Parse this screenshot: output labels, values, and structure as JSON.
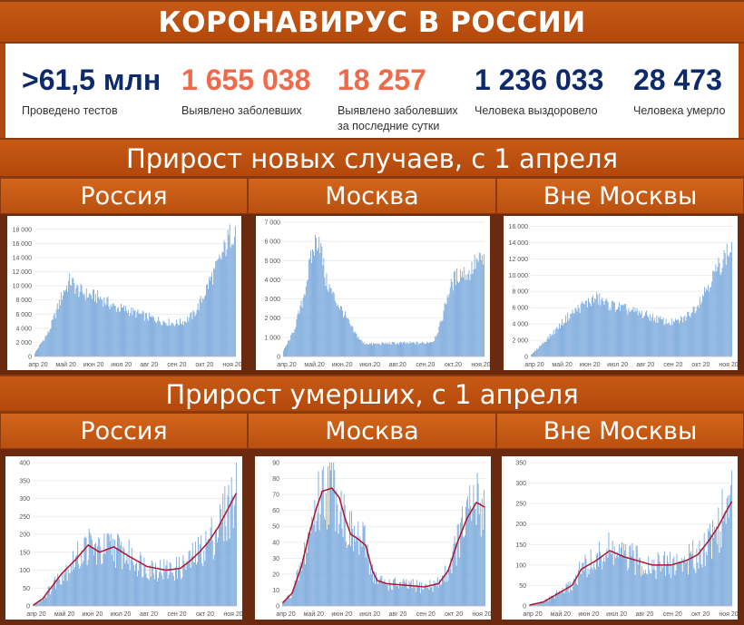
{
  "title": "КОРОНАВИРУС В РОССИИ",
  "stats": [
    {
      "value": ">61,5 млн",
      "label": "Проведено тестов",
      "label2": "",
      "color": "#0d2a6b"
    },
    {
      "value": "1 655 038",
      "label": "Выявлено заболевших",
      "label2": "",
      "color": "#ee6a4a"
    },
    {
      "value": "18 257",
      "label": "Выявлено заболевших",
      "label2": "за последние сутки",
      "color": "#ee6a4a"
    },
    {
      "value": "1 236 033",
      "label": "Человека выздоровело",
      "label2": "",
      "color": "#0d2a6b"
    },
    {
      "value": "28 473",
      "label": "Человека умерло",
      "label2": "",
      "color": "#0d2a6b"
    }
  ],
  "section_cases": "Прирост новых случаев, с 1 апреля",
  "section_deaths": "Прирост умерших, с 1 апреля",
  "regions": [
    "Россия",
    "Москва",
    "Вне Москвы"
  ],
  "colors": {
    "bar": "#7aa9dc",
    "line": "#b0132a",
    "grid": "#e6e6e6"
  },
  "chart_data": [
    {
      "type": "bar",
      "region": "Россия",
      "metric": "cases",
      "ylim": [
        0,
        19000
      ],
      "yticks": [
        "0",
        "2 000",
        "4 000",
        "6 000",
        "8 000",
        "10 000",
        "12 000",
        "14 000",
        "16 000",
        "18 000"
      ],
      "xticks": [
        "апр 20",
        "май 20",
        "июн 20",
        "июл 20",
        "авг 20",
        "сен 20",
        "окт 20",
        "ноя 20"
      ],
      "x_days": 215,
      "knots": [
        [
          0,
          500
        ],
        [
          15,
          3500
        ],
        [
          30,
          9000
        ],
        [
          38,
          10800
        ],
        [
          45,
          9500
        ],
        [
          55,
          8800
        ],
        [
          70,
          8300
        ],
        [
          85,
          7000
        ],
        [
          100,
          6500
        ],
        [
          120,
          5600
        ],
        [
          140,
          4900
        ],
        [
          150,
          4700
        ],
        [
          160,
          5000
        ],
        [
          170,
          6000
        ],
        [
          178,
          8000
        ],
        [
          186,
          10500
        ],
        [
          194,
          12500
        ],
        [
          202,
          15000
        ],
        [
          208,
          17000
        ],
        [
          214,
          18257
        ]
      ]
    },
    {
      "type": "bar",
      "region": "Москва",
      "metric": "cases",
      "ylim": [
        0,
        7000
      ],
      "yticks": [
        "0",
        "1 000",
        "2 000",
        "3 000",
        "4 000",
        "5 000",
        "6 000",
        "7 000"
      ],
      "xticks": [
        "апр.20",
        "май.20",
        "июн.20",
        "июл.20",
        "авг.20",
        "сен.20",
        "окт.20",
        "ноя.20"
      ],
      "x_days": 215,
      "knots": [
        [
          0,
          300
        ],
        [
          10,
          1200
        ],
        [
          20,
          2800
        ],
        [
          28,
          4800
        ],
        [
          34,
          5900
        ],
        [
          38,
          6300
        ],
        [
          45,
          4000
        ],
        [
          55,
          3000
        ],
        [
          65,
          2200
        ],
        [
          75,
          1300
        ],
        [
          85,
          700
        ],
        [
          95,
          650
        ],
        [
          120,
          700
        ],
        [
          150,
          700
        ],
        [
          160,
          800
        ],
        [
          168,
          1700
        ],
        [
          175,
          3200
        ],
        [
          182,
          4000
        ],
        [
          190,
          4400
        ],
        [
          198,
          4300
        ],
        [
          205,
          4900
        ],
        [
          214,
          5000
        ]
      ]
    },
    {
      "type": "bar",
      "region": "Вне Москвы",
      "metric": "cases",
      "ylim": [
        0,
        16500
      ],
      "yticks": [
        "0",
        "2 000",
        "4 000",
        "6 000",
        "8 000",
        "10 000",
        "12 000",
        "14 000",
        "16 000"
      ],
      "xticks": [
        "апр 20",
        "май 20",
        "июн 20",
        "июл 20",
        "авг 20",
        "сен 20",
        "окт 20",
        "ноя 20"
      ],
      "x_days": 215,
      "knots": [
        [
          0,
          200
        ],
        [
          20,
          2500
        ],
        [
          40,
          5000
        ],
        [
          55,
          6300
        ],
        [
          70,
          7200
        ],
        [
          80,
          6500
        ],
        [
          95,
          6000
        ],
        [
          110,
          5500
        ],
        [
          130,
          4800
        ],
        [
          145,
          4200
        ],
        [
          155,
          4200
        ],
        [
          165,
          4800
        ],
        [
          175,
          6000
        ],
        [
          185,
          8000
        ],
        [
          195,
          10000
        ],
        [
          205,
          12000
        ],
        [
          214,
          13300
        ]
      ]
    },
    {
      "type": "bar+line",
      "region": "Россия",
      "metric": "deaths",
      "ylim": [
        0,
        400
      ],
      "yticks": [
        "0",
        "50",
        "100",
        "150",
        "200",
        "250",
        "300",
        "350",
        "400"
      ],
      "xticks": [
        "апр 20",
        "май 20",
        "июн 20",
        "июл 20",
        "авг 20",
        "сен 20",
        "окт 20",
        "ноя 20"
      ],
      "x_days": 215,
      "knots": [
        [
          0,
          2
        ],
        [
          10,
          20
        ],
        [
          20,
          55
        ],
        [
          30,
          90
        ],
        [
          45,
          130
        ],
        [
          58,
          170
        ],
        [
          70,
          150
        ],
        [
          85,
          165
        ],
        [
          100,
          140
        ],
        [
          120,
          110
        ],
        [
          140,
          100
        ],
        [
          155,
          105
        ],
        [
          165,
          125
        ],
        [
          175,
          150
        ],
        [
          185,
          180
        ],
        [
          195,
          220
        ],
        [
          205,
          270
        ],
        [
          214,
          315
        ]
      ]
    },
    {
      "type": "bar+line",
      "region": "Москва",
      "metric": "deaths",
      "ylim": [
        0,
        90
      ],
      "yticks": [
        "0",
        "10",
        "20",
        "30",
        "40",
        "50",
        "60",
        "70",
        "80",
        "90"
      ],
      "xticks": [
        "апр 20",
        "май 20",
        "июн 20",
        "июл 20",
        "авг 20",
        "сен 20",
        "окт 20",
        "ноя 20"
      ],
      "x_days": 215,
      "knots": [
        [
          0,
          2
        ],
        [
          10,
          8
        ],
        [
          20,
          25
        ],
        [
          28,
          45
        ],
        [
          36,
          62
        ],
        [
          42,
          72
        ],
        [
          52,
          74
        ],
        [
          60,
          68
        ],
        [
          66,
          55
        ],
        [
          72,
          45
        ],
        [
          80,
          42
        ],
        [
          88,
          38
        ],
        [
          95,
          22
        ],
        [
          100,
          16
        ],
        [
          110,
          14
        ],
        [
          130,
          13
        ],
        [
          150,
          12
        ],
        [
          165,
          14
        ],
        [
          175,
          22
        ],
        [
          185,
          40
        ],
        [
          195,
          55
        ],
        [
          205,
          65
        ],
        [
          214,
          62
        ]
      ]
    },
    {
      "type": "bar+line",
      "region": "Вне Москвы",
      "metric": "deaths",
      "ylim": [
        0,
        350
      ],
      "yticks": [
        "0",
        "50",
        "100",
        "150",
        "200",
        "250",
        "300",
        "350"
      ],
      "xticks": [
        "апр 20",
        "май 20",
        "июн 20",
        "июл 20",
        "авг 20",
        "сен 20",
        "окт 20",
        "ноя 20"
      ],
      "x_days": 215,
      "knots": [
        [
          0,
          2
        ],
        [
          15,
          10
        ],
        [
          30,
          30
        ],
        [
          45,
          50
        ],
        [
          55,
          90
        ],
        [
          70,
          110
        ],
        [
          85,
          135
        ],
        [
          100,
          120
        ],
        [
          115,
          110
        ],
        [
          130,
          100
        ],
        [
          150,
          100
        ],
        [
          165,
          110
        ],
        [
          178,
          125
        ],
        [
          190,
          160
        ],
        [
          200,
          195
        ],
        [
          208,
          230
        ],
        [
          214,
          255
        ]
      ]
    }
  ]
}
